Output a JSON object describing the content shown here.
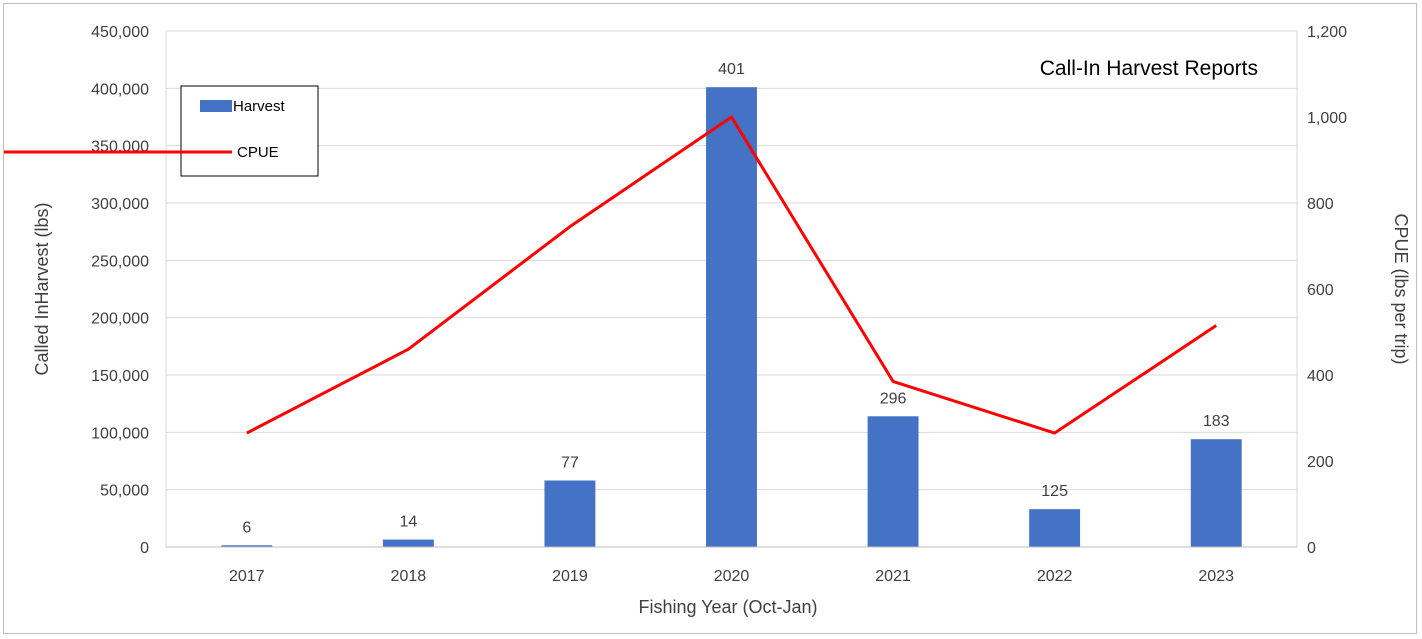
{
  "chart_data": {
    "type": "bar",
    "title": "Call-In Harvest Reports",
    "xlabel": "Fishing Year (Oct-Jan)",
    "ylabel": "Called InHarvest (lbs)",
    "y2label": "CPUE (lbs per trip)",
    "categories": [
      "2017",
      "2018",
      "2019",
      "2020",
      "2021",
      "2022",
      "2023"
    ],
    "ylim": [
      0,
      450000
    ],
    "y2lim": [
      0,
      1200
    ],
    "yticks": [
      "0",
      "50,000",
      "100,000",
      "150,000",
      "200,000",
      "250,000",
      "300,000",
      "350,000",
      "400,000",
      "450,000"
    ],
    "y2ticks": [
      "0",
      "200",
      "400",
      "600",
      "800",
      "1,000",
      "1,200"
    ],
    "grid": true,
    "legend_position": "top-left",
    "series": [
      {
        "name": "Harvest",
        "type": "bar",
        "axis": "left",
        "color": "#4472C4",
        "values": [
          1500,
          6500,
          58000,
          401000,
          114000,
          33000,
          94000
        ],
        "data_labels": [
          "6",
          "14",
          "77",
          "401",
          "296",
          "125",
          "183"
        ]
      },
      {
        "name": "CPUE",
        "type": "line",
        "axis": "right",
        "color": "#FF0000",
        "values": [
          265,
          460,
          745,
          1000,
          385,
          265,
          515
        ]
      }
    ]
  }
}
